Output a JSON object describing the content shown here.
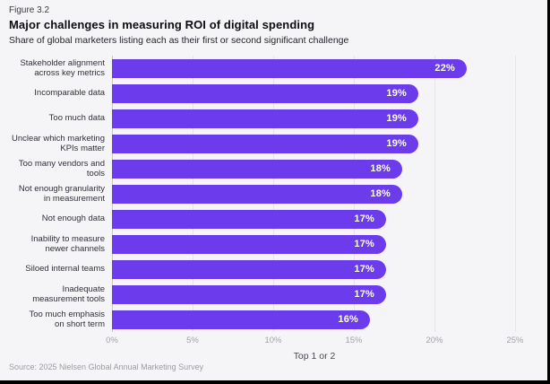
{
  "header": {
    "figure_label": "Figure 3.2",
    "title": "Major challenges in measuring ROI of digital spending",
    "subtitle": "Share of global marketers listing each as their first or second significant challenge"
  },
  "chart_data": {
    "type": "bar",
    "orientation": "horizontal",
    "categories": [
      "Stakeholder alignment\nacross key metrics",
      "Incomparable data",
      "Too much data",
      "Unclear which marketing\nKPIs matter",
      "Too many vendors and\ntools",
      "Not enough granularity\nin measurement",
      "Not enough data",
      "Inability to measure\nnewer channels",
      "Siloed internal teams",
      "Inadequate\nmeasurement tools",
      "Too much emphasis\non short term"
    ],
    "values": [
      22,
      19,
      19,
      19,
      18,
      18,
      17,
      17,
      17,
      17,
      16
    ],
    "value_suffix": "%",
    "xlabel": "Top 1 or 2",
    "xlim": [
      0,
      25
    ],
    "xticks": [
      "0%",
      "5%",
      "10%",
      "15%",
      "20%",
      "25%"
    ],
    "xtick_values": [
      0,
      5,
      10,
      15,
      20,
      25
    ],
    "grid": true,
    "legend": "none",
    "bar_color": "#6C3BEB",
    "value_label_color": "#FFFFFF",
    "background_color": "#F5F5F7",
    "gridline_color": "#E4E4EA"
  },
  "footer": {
    "source": "Source: 2025 Nielsen Global Annual Marketing Survey"
  }
}
